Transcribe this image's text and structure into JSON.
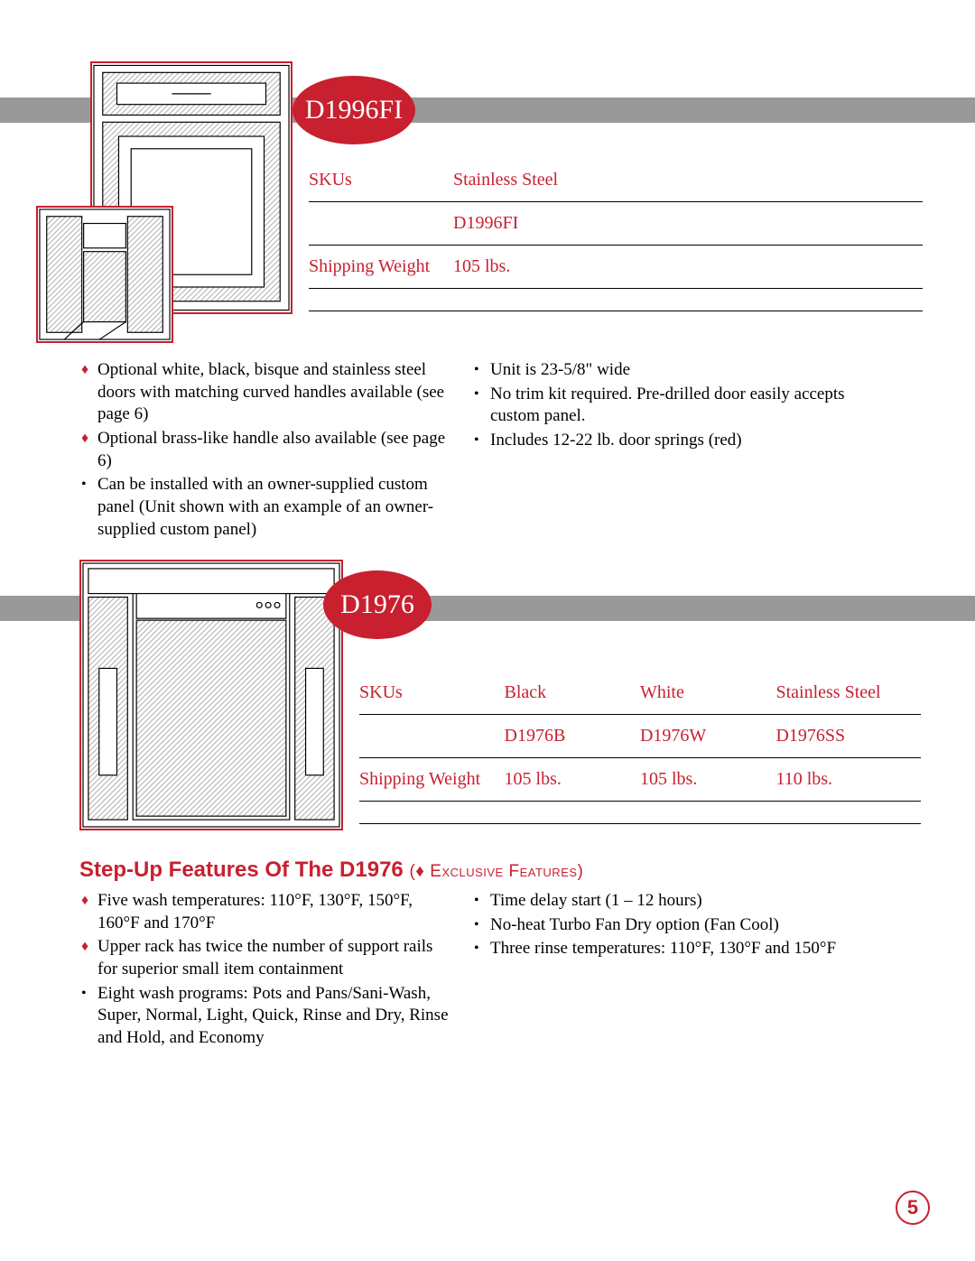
{
  "colors": {
    "brand_red": "#c8202f",
    "gray_bar": "#999999",
    "text_black": "#000000",
    "page_bg": "#ffffff"
  },
  "page_number": "5",
  "product1": {
    "badge_label": "D1996FI",
    "table": {
      "rows": [
        {
          "label": "SKUs",
          "cols": [
            "Stainless Steel"
          ]
        },
        {
          "label": "",
          "cols": [
            "D1996FI"
          ]
        },
        {
          "label": "Shipping Weight",
          "cols": [
            "105 lbs."
          ]
        },
        {
          "label": "",
          "cols": [
            ""
          ]
        }
      ]
    },
    "features_left": [
      {
        "marker": "diamond",
        "text": "Optional white, black, bisque and stainless steel doors with matching curved handles available (see page 6)"
      },
      {
        "marker": "diamond",
        "text": "Optional brass-like handle also available (see page 6)"
      },
      {
        "marker": "dot",
        "text": "Can be installed with an owner-supplied custom panel (Unit shown with an example of an owner-supplied custom panel)"
      }
    ],
    "features_right": [
      {
        "marker": "dot",
        "text": "Unit is 23-5/8\" wide"
      },
      {
        "marker": "dot",
        "text": "No trim kit required. Pre-drilled door easily accepts custom panel."
      },
      {
        "marker": "dot",
        "text": "Includes 12-22 lb. door springs (red)"
      }
    ]
  },
  "product2": {
    "badge_label": "D1976",
    "heading_main": "Step-Up Features Of The D1976",
    "heading_sub": "(♦ Exclusive Features)",
    "table": {
      "rows": [
        {
          "label": "SKUs",
          "cols": [
            "Black",
            "White",
            "Stainless Steel"
          ]
        },
        {
          "label": "",
          "cols": [
            "D1976B",
            "D1976W",
            "D1976SS"
          ]
        },
        {
          "label": "Shipping Weight",
          "cols": [
            "105 lbs.",
            "105 lbs.",
            "110 lbs."
          ]
        },
        {
          "label": "",
          "cols": [
            "",
            "",
            ""
          ]
        }
      ]
    },
    "features_left": [
      {
        "marker": "diamond",
        "text": "Five wash temperatures: 110°F, 130°F, 150°F, 160°F and 170°F"
      },
      {
        "marker": "diamond",
        "text": "Upper rack has twice the number of support rails for superior small item containment"
      },
      {
        "marker": "dot",
        "text": "Eight wash programs: Pots and Pans/Sani-Wash, Super, Normal, Light, Quick, Rinse and Dry, Rinse and Hold, and Economy"
      }
    ],
    "features_right": [
      {
        "marker": "dot",
        "text": "Time delay start (1 – 12 hours)"
      },
      {
        "marker": "dot",
        "text": "No-heat Turbo Fan Dry option (Fan Cool)"
      },
      {
        "marker": "dot",
        "text": "Three rinse temperatures: 110°F, 130°F and 150°F"
      }
    ]
  }
}
